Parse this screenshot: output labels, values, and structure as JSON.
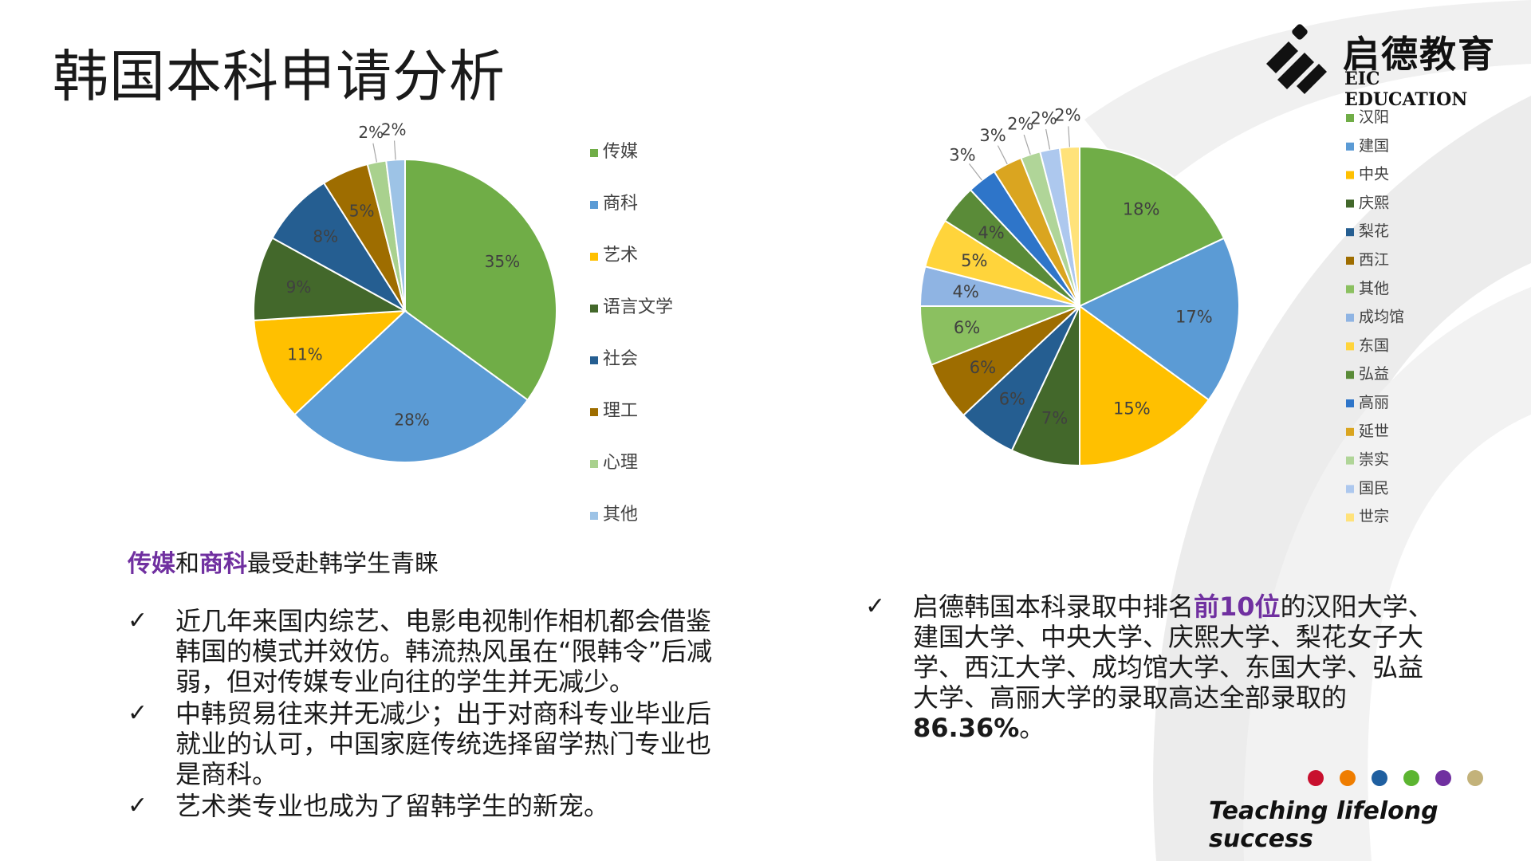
{
  "slide": {
    "title": "韩国本科申请分析"
  },
  "logo": {
    "cn": "启德教育",
    "en": "EIC EDUCATION"
  },
  "left_panel": {
    "tagline_part1": "传媒",
    "tagline_part2": "和",
    "tagline_part3": "商科",
    "tagline_part4": "最受赴韩学生青睐",
    "check_symbol": "✓",
    "bullets": [
      "近几年来国内综艺、电影电视制作相机都会借鉴韩国的模式并效仿。韩流热风虽在“限韩令”后减弱，但对传媒专业向往的学生并无减少。",
      "中韩贸易往来并无减少；出于对商科专业毕业后就业的认可，中国家庭传统选择留学热门专业也是商科。",
      "艺术类专业也成为了留韩学生的新宠。"
    ]
  },
  "right_panel": {
    "text_part1": "启德韩国本科录取中排名",
    "text_highlight": "前10位",
    "text_part2": "的汉阳大学、建国大学、中央大学、庆熙大学、梨花女子大学、西江大学、成均馆大学、东国大学、弘益大学、高丽大学的录取高达全部录取的",
    "text_bold": "86.36%",
    "text_end": "。"
  },
  "footer": {
    "slogan": "Teaching lifelong success",
    "dot_colors": [
      "#c8102e",
      "#ef7d00",
      "#1f5fa0",
      "#5cb531",
      "#7030a0",
      "#c3b27a"
    ]
  },
  "chart_data": [
    {
      "type": "pie",
      "title": "",
      "categories": [
        "传媒",
        "商科",
        "艺术",
        "语言文学",
        "社会",
        "理工",
        "心理",
        "其他"
      ],
      "values": [
        35,
        28,
        11,
        9,
        8,
        5,
        2,
        2
      ],
      "labels": [
        "35%",
        "28%",
        "11%",
        "9%",
        "8%",
        "5%",
        "2%",
        "2%"
      ],
      "colors": [
        "#70ad47",
        "#5b9bd5",
        "#ffc000",
        "#43682b",
        "#255e91",
        "#9e6d00",
        "#a9d18e",
        "#9dc3e6"
      ],
      "legend_position": "right"
    },
    {
      "type": "pie",
      "title": "",
      "categories": [
        "汉阳",
        "建国",
        "中央",
        "庆熙",
        "梨花",
        "西江",
        "其他",
        "成均馆",
        "东国",
        "弘益",
        "高丽",
        "延世",
        "崇实",
        "国民",
        "世宗"
      ],
      "values": [
        18,
        17,
        15,
        7,
        6,
        6,
        6,
        4,
        5,
        4,
        3,
        3,
        2,
        2,
        2
      ],
      "labels": [
        "18%",
        "17%",
        "15%",
        "7%",
        "6%",
        "6%",
        "6%",
        "4%",
        "5%",
        "4%",
        "3%",
        "3%",
        "2%",
        "2%",
        "2%"
      ],
      "colors": [
        "#70ad47",
        "#5b9bd5",
        "#ffc000",
        "#43682b",
        "#255e91",
        "#9e6d00",
        "#8bc060",
        "#8fb4e3",
        "#ffd43b",
        "#5a8b38",
        "#2e75c9",
        "#daa520",
        "#b0d598",
        "#adc8ee",
        "#ffe27a"
      ],
      "legend_position": "right"
    }
  ]
}
